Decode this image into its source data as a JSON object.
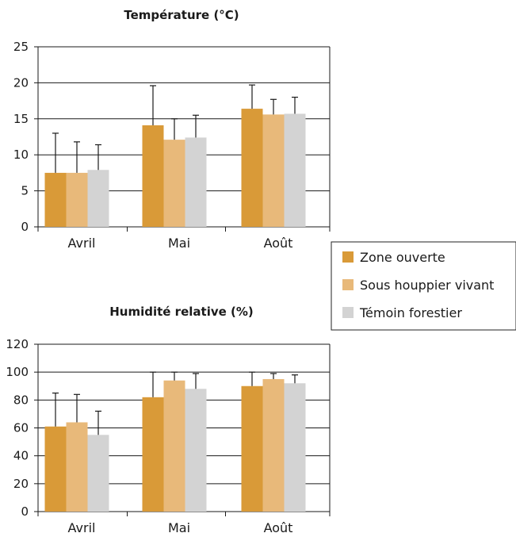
{
  "chart_data": [
    {
      "type": "bar",
      "title": "Température (°C)",
      "categories": [
        "Avril",
        "Mai",
        "Août"
      ],
      "ylim": [
        0,
        25
      ],
      "yticks": [
        0,
        5,
        10,
        15,
        20,
        25
      ],
      "grid": true,
      "series": [
        {
          "name": "Zone ouverte",
          "values": [
            7.5,
            14.1,
            16.4
          ],
          "error_upper": [
            13.0,
            19.6,
            19.7
          ]
        },
        {
          "name": "Sous houppier vivant",
          "values": [
            7.5,
            12.1,
            15.6
          ],
          "error_upper": [
            11.8,
            15.0,
            17.7
          ]
        },
        {
          "name": "Témoin forestier",
          "values": [
            7.9,
            12.4,
            15.7
          ],
          "error_upper": [
            11.4,
            15.5,
            18.0
          ]
        }
      ]
    },
    {
      "type": "bar",
      "title": "Humidité relative (%)",
      "categories": [
        "Avril",
        "Mai",
        "Août"
      ],
      "ylim": [
        0,
        120
      ],
      "yticks": [
        0,
        20,
        40,
        60,
        80,
        100,
        120
      ],
      "grid": true,
      "series": [
        {
          "name": "Zone ouverte",
          "values": [
            61,
            82,
            90
          ],
          "error_upper": [
            85,
            100,
            100
          ]
        },
        {
          "name": "Sous houppier vivant",
          "values": [
            64,
            94,
            95
          ],
          "error_upper": [
            84,
            100,
            99
          ]
        },
        {
          "name": "Témoin forestier",
          "values": [
            55,
            88,
            92
          ],
          "error_upper": [
            72,
            99,
            98
          ]
        }
      ]
    }
  ],
  "legend": {
    "placement": "right",
    "items": [
      {
        "label": "Zone ouverte",
        "color": "#d99a38"
      },
      {
        "label": "Sous houppier vivant",
        "color": "#e8b97a"
      },
      {
        "label": "Témoin forestier",
        "color": "#d3d3d3"
      }
    ]
  }
}
